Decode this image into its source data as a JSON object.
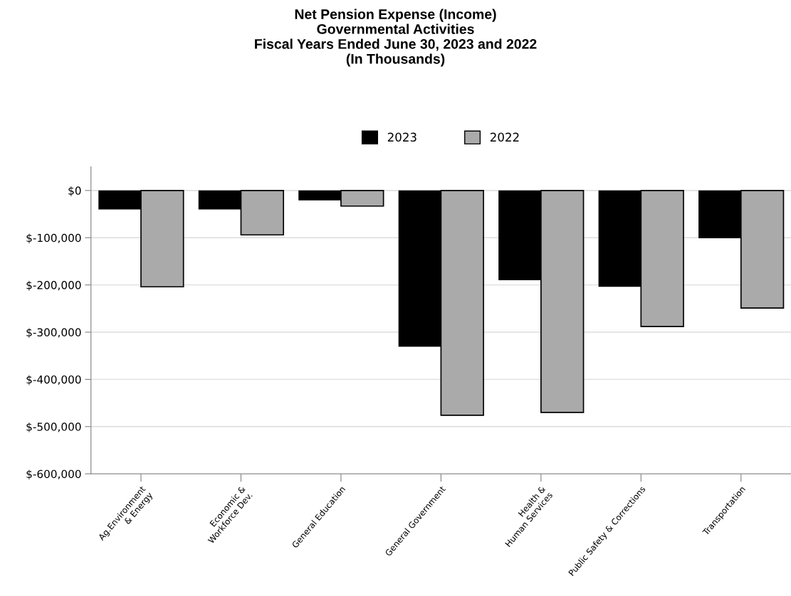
{
  "chart_data": {
    "type": "bar",
    "title": "Net Pension Expense (Income)\nGovernmental Activities\nFiscal Years Ended June 30, 2023 and 2022\n(In Thousands)",
    "categories": [
      "Ag.Environment\n& Energy",
      "Economic &\nWorkforce Dev.",
      "General Education",
      "General Government",
      "Health &\nHuman Services",
      "Public Safety & Corrections",
      "Transportation"
    ],
    "series": [
      {
        "name": "2023",
        "color": "#000000",
        "values": [
          -40000,
          -40000,
          -21000,
          -331000,
          -190000,
          -204000,
          -101000
        ]
      },
      {
        "name": "2022",
        "color": "#aaaaaa",
        "values": [
          -204000,
          -94000,
          -33000,
          -476000,
          -470000,
          -288000,
          -249000
        ]
      }
    ],
    "ylim": [
      -600000,
      50000
    ],
    "yticks": [
      {
        "value": -600000,
        "label": "$-600,000"
      },
      {
        "value": -500000,
        "label": "$-500,000"
      },
      {
        "value": -400000,
        "label": "$-400,000"
      },
      {
        "value": -300000,
        "label": "$-300,000"
      },
      {
        "value": -200000,
        "label": "$-200,000"
      },
      {
        "value": -100000,
        "label": "$-100,000"
      },
      {
        "value": 0,
        "label": "$0"
      }
    ],
    "grid": "y",
    "legend": "top"
  }
}
